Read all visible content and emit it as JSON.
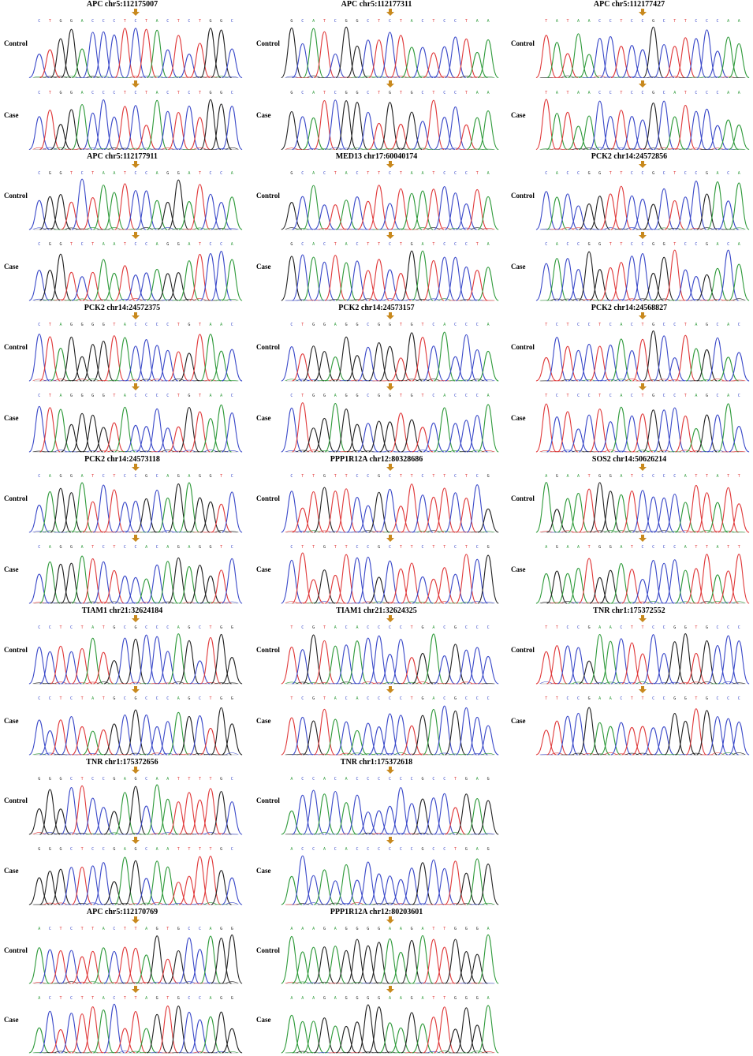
{
  "figure": {
    "row_labels": {
      "control": "Control",
      "case": "Case"
    },
    "colors": {
      "A": "#2e9a3a",
      "C": "#3a49c9",
      "G": "#222222",
      "T": "#e0393a",
      "arrow": "#c8891e"
    },
    "panels": [
      {
        "id": "apc-112175007",
        "title": "APC chr5:112175007",
        "control_seq": "CTGGACCCTCTACTCTGGC",
        "case_seq": "CTGGACCCTCTACTCTGGC"
      },
      {
        "id": "apc-112177311",
        "title": "APC chr5:112177311",
        "control_seq": "GCATCGGCTCTACTCCTAA",
        "case_seq": "GCATCGGCTGTGCTCCTAA"
      },
      {
        "id": "apc-112177427",
        "title": "APC chr5:112177427",
        "control_seq": "TATAACCTCCGCTTCCCAA",
        "case_seq": "TATAACCTCCGCATCCCAA"
      },
      {
        "id": "apc-112177911",
        "title": "APC chr5:112177911",
        "control_seq": "CGGTCTAATCCAGGATCCA",
        "case_seq": "CGGTCTAATCCAGGATCCA"
      },
      {
        "id": "med13-60040174",
        "title": "MED13 chr17:60040174",
        "control_seq": "GCACTACTTCTAATCCCTA",
        "case_seq": "GCACTACTTCTGATCCCTA"
      },
      {
        "id": "pck2-24572856",
        "title": "PCK2 chr14:24572856",
        "control_seq": "CACCGGTTCCGCTCCGACA",
        "case_seq": "CACCGGTTCCGGTCCGACA"
      },
      {
        "id": "pck2-24572375",
        "title": "PCK2 chr14:24572375",
        "control_seq": "CTAGGGGTACCCCTGTAAC",
        "case_seq": "CTAGGGGTACCCCTGTAAC"
      },
      {
        "id": "pck2-24573157",
        "title": "PCK2 chr14:24573157",
        "control_seq": "CTGGAGGCGGTGTCACCCA",
        "case_seq": "CTGGAGGCGGTGTCACCCA"
      },
      {
        "id": "pck2-24568827",
        "title": "PCK2 chr14:24568827",
        "control_seq": "TCTCCTCACTGCCTAGCAC",
        "case_seq": "TCTCCTCACTGCCTAGCAC"
      },
      {
        "id": "pck2-24573118",
        "title": "PCK2 chr14:24573118",
        "control_seq": "CAGGATCTCCGCAGAGGTC",
        "case_seq": "CAGGATCTCCACAGAGGTC"
      },
      {
        "id": "ppp1r12a-80328686",
        "title": "PPP1R12A chr12:80328686",
        "control_seq": "CTTGTTCCGCTTCTTCTCG",
        "case_seq": "CTTGTTCCGCTTCTTCTCG"
      },
      {
        "id": "sos2-50626214",
        "title": "SOS2 chr14:50626214",
        "control_seq": "AGAATGGATCCCCATTATT",
        "case_seq": "AGAATGGATCCCCATTATT"
      },
      {
        "id": "tiam1-32624184",
        "title": "TIAM1 chr21:32624184",
        "control_seq": "CCTCTATGCGCCCAGCTGG",
        "case_seq": "CCTCTATGCGCCCAGCTGG"
      },
      {
        "id": "tiam1-32624325",
        "title": "TIAM1 chr21:32624325",
        "control_seq": "TCGTACACCCCTGACGCCC",
        "case_seq": "TCGTACACCCCTGACGCCC"
      },
      {
        "id": "tnr-175372552",
        "title": "TNR chr1:175372552",
        "control_seq": "TTCCGAACTTCCGGTGCCC",
        "case_seq": "TTCCGAACTTCCGGTGCCC"
      },
      {
        "id": "tnr-175372656",
        "title": "TNR chr1:175372656",
        "control_seq": "GGGCTCCGAGCAATTTTGC",
        "case_seq": "GGGCTCCGAGCAATTTTGC"
      },
      {
        "id": "tnr-175372618",
        "title": "TNR chr1:175372618",
        "control_seq": "ACCACACCCCCCGCCTGAG",
        "case_seq": "ACCACACCCCCCGCCTGAG"
      },
      {
        "id": "apc-112170769",
        "title": "APC chr5:112170769",
        "control_seq": "ACTCTTACTTAGTGCCAGG",
        "case_seq": "ACTCTTACTTAGTGCCAGG"
      },
      {
        "id": "ppp1r12a-80203601",
        "title": "PPP1R12A chr12:80203601",
        "control_seq": "AAAGAGGGGAAGATTGGGA",
        "case_seq": "AAAGAGGGGAAGATTGGGA"
      }
    ]
  }
}
